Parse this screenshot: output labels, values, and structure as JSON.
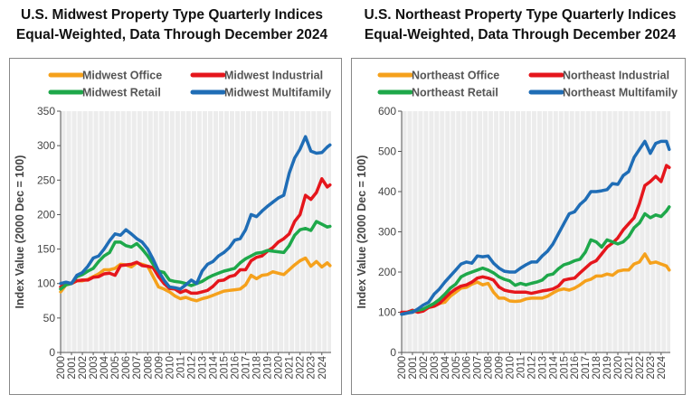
{
  "chart_data": [
    {
      "type": "line",
      "title": [
        "U.S. Midwest Property Type Quarterly Indices",
        "Equal-Weighted, Data Through December 2024"
      ],
      "xlabel": "",
      "ylabel": "Index Value (2000 Dec = 100)",
      "ylim": [
        0,
        350
      ],
      "yticks": [
        0,
        50,
        100,
        150,
        200,
        250,
        300,
        350
      ],
      "xticks": [
        "2000",
        "2001",
        "2002",
        "2003",
        "2004",
        "2005",
        "2006",
        "2007",
        "2008",
        "2009",
        "2010",
        "2011",
        "2012",
        "2013",
        "2014",
        "2015",
        "2016",
        "2017",
        "2018",
        "2019",
        "2020",
        "2021",
        "2022",
        "2023",
        "2024"
      ],
      "xlim": [
        2000,
        2024.85
      ],
      "grid": "vertical",
      "legend_position": "top",
      "x": [
        2000,
        2000.5,
        2001,
        2001.5,
        2002,
        2002.5,
        2003,
        2003.5,
        2004,
        2004.5,
        2005,
        2005.5,
        2006,
        2006.5,
        2007,
        2007.5,
        2008,
        2008.5,
        2009,
        2009.5,
        2010,
        2010.5,
        2011,
        2011.5,
        2012,
        2012.5,
        2013,
        2013.5,
        2014,
        2014.5,
        2015,
        2015.5,
        2016,
        2016.5,
        2017,
        2017.5,
        2018,
        2018.5,
        2019,
        2019.5,
        2020,
        2020.5,
        2021,
        2021.5,
        2022,
        2022.5,
        2023,
        2023.5,
        2024,
        2024.5,
        2024.75
      ],
      "series": [
        {
          "name": "Midwest Office",
          "color": "#F5A11C",
          "values": [
            88,
            98,
            100,
            104,
            104,
            106,
            110,
            114,
            120,
            120,
            122,
            128,
            127,
            124,
            130,
            128,
            125,
            110,
            95,
            92,
            88,
            82,
            78,
            80,
            77,
            75,
            78,
            80,
            83,
            86,
            89,
            90,
            91,
            92,
            98,
            112,
            107,
            112,
            113,
            117,
            115,
            113,
            120,
            127,
            133,
            137,
            125,
            132,
            124,
            130,
            126
          ]
        },
        {
          "name": "Midwest Industrial",
          "color": "#E5161C",
          "values": [
            95,
            100,
            100,
            104,
            105,
            105,
            109,
            110,
            114,
            115,
            112,
            126,
            127,
            128,
            131,
            126,
            125,
            123,
            110,
            100,
            93,
            92,
            87,
            90,
            86,
            86,
            88,
            90,
            96,
            104,
            105,
            110,
            112,
            120,
            120,
            133,
            138,
            140,
            147,
            152,
            160,
            165,
            172,
            190,
            200,
            228,
            222,
            232,
            252,
            240,
            243
          ]
        },
        {
          "name": "Midwest Retail",
          "color": "#1EA84A",
          "values": [
            92,
            98,
            100,
            110,
            113,
            118,
            122,
            132,
            140,
            145,
            160,
            160,
            155,
            153,
            158,
            150,
            140,
            128,
            118,
            116,
            105,
            103,
            102,
            100,
            97,
            100,
            103,
            108,
            112,
            115,
            118,
            120,
            122,
            130,
            136,
            140,
            144,
            145,
            148,
            147,
            146,
            145,
            155,
            170,
            178,
            180,
            177,
            190,
            186,
            182,
            183
          ]
        },
        {
          "name": "Midwest Multifamily",
          "color": "#1F6DB6",
          "values": [
            100,
            102,
            100,
            112,
            116,
            125,
            137,
            140,
            150,
            162,
            172,
            170,
            178,
            172,
            165,
            160,
            150,
            135,
            118,
            105,
            95,
            94,
            92,
            98,
            105,
            100,
            118,
            128,
            132,
            140,
            145,
            152,
            163,
            165,
            178,
            200,
            197,
            205,
            212,
            218,
            224,
            228,
            260,
            282,
            295,
            313,
            292,
            289,
            290,
            298,
            301
          ]
        }
      ]
    },
    {
      "type": "line",
      "title": [
        "U.S. Northeast Property Type Quarterly Indices",
        "Equal-Weighted, Data Through December 2024"
      ],
      "xlabel": "",
      "ylabel": "Index Value (2000 Dec = 100)",
      "ylim": [
        0,
        600
      ],
      "yticks": [
        0,
        100,
        200,
        300,
        400,
        500,
        600
      ],
      "xticks": [
        "2000",
        "2001",
        "2002",
        "2003",
        "2004",
        "2005",
        "2006",
        "2007",
        "2008",
        "2009",
        "2010",
        "2011",
        "2012",
        "2013",
        "2014",
        "2015",
        "2016",
        "2017",
        "2018",
        "2019",
        "2020",
        "2021",
        "2022",
        "2023",
        "2024"
      ],
      "xlim": [
        2000,
        2024.85
      ],
      "grid": "vertical",
      "legend_position": "top",
      "x": [
        2000,
        2000.5,
        2001,
        2001.5,
        2002,
        2002.5,
        2003,
        2003.5,
        2004,
        2004.5,
        2005,
        2005.5,
        2006,
        2006.5,
        2007,
        2007.5,
        2008,
        2008.5,
        2009,
        2009.5,
        2010,
        2010.5,
        2011,
        2011.5,
        2012,
        2012.5,
        2013,
        2013.5,
        2014,
        2014.5,
        2015,
        2015.5,
        2016,
        2016.5,
        2017,
        2017.5,
        2018,
        2018.5,
        2019,
        2019.5,
        2020,
        2020.5,
        2021,
        2021.5,
        2022,
        2022.5,
        2023,
        2023.5,
        2024,
        2024.5,
        2024.75
      ],
      "series": [
        {
          "name": "Northeast Office",
          "color": "#F5A11C",
          "values": [
            97,
            100,
            100,
            105,
            105,
            112,
            115,
            122,
            125,
            140,
            150,
            160,
            162,
            170,
            175,
            168,
            172,
            150,
            135,
            135,
            128,
            127,
            128,
            133,
            135,
            135,
            135,
            140,
            148,
            155,
            158,
            155,
            160,
            168,
            178,
            182,
            190,
            190,
            195,
            192,
            202,
            205,
            205,
            220,
            225,
            245,
            222,
            225,
            220,
            215,
            205
          ]
        },
        {
          "name": "Northeast Industrial",
          "color": "#E5161C",
          "values": [
            100,
            100,
            105,
            100,
            103,
            112,
            115,
            122,
            135,
            148,
            158,
            165,
            168,
            175,
            185,
            188,
            185,
            180,
            163,
            155,
            152,
            150,
            150,
            150,
            147,
            150,
            153,
            155,
            158,
            165,
            180,
            183,
            185,
            198,
            210,
            222,
            228,
            245,
            262,
            272,
            285,
            305,
            320,
            335,
            370,
            415,
            425,
            438,
            425,
            465,
            460
          ]
        },
        {
          "name": "Northeast Retail",
          "color": "#1EA84A",
          "values": [
            95,
            98,
            102,
            105,
            108,
            115,
            122,
            132,
            145,
            160,
            170,
            188,
            195,
            200,
            205,
            210,
            205,
            198,
            188,
            182,
            178,
            167,
            172,
            168,
            172,
            175,
            180,
            192,
            195,
            208,
            218,
            222,
            228,
            232,
            250,
            280,
            275,
            262,
            280,
            275,
            270,
            275,
            288,
            310,
            322,
            345,
            335,
            342,
            338,
            352,
            362
          ]
        },
        {
          "name": "Northeast Multifamily",
          "color": "#1F6DB6",
          "values": [
            95,
            98,
            100,
            108,
            118,
            125,
            145,
            158,
            175,
            190,
            205,
            220,
            225,
            222,
            240,
            238,
            240,
            222,
            210,
            202,
            200,
            200,
            210,
            218,
            225,
            225,
            240,
            252,
            270,
            295,
            320,
            345,
            350,
            368,
            380,
            400,
            400,
            402,
            405,
            420,
            418,
            440,
            450,
            485,
            505,
            525,
            495,
            520,
            525,
            525,
            505
          ]
        }
      ]
    }
  ]
}
